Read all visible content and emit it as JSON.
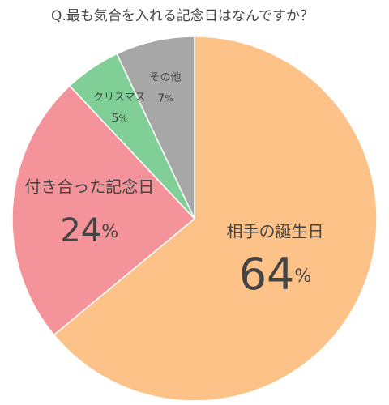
{
  "chart_data": {
    "type": "pie",
    "title": "Q.最も気合を入れる記念日はなんですか？",
    "categories": [
      "相手の誕生日",
      "付き合った記念日",
      "クリスマス",
      "その他"
    ],
    "values": [
      64,
      24,
      5,
      7
    ],
    "value_labels": [
      "64%",
      "24%",
      "5%",
      "7%"
    ],
    "colors": [
      "#fcc287",
      "#f4939a",
      "#80cf97",
      "#a7a7a7"
    ]
  }
}
